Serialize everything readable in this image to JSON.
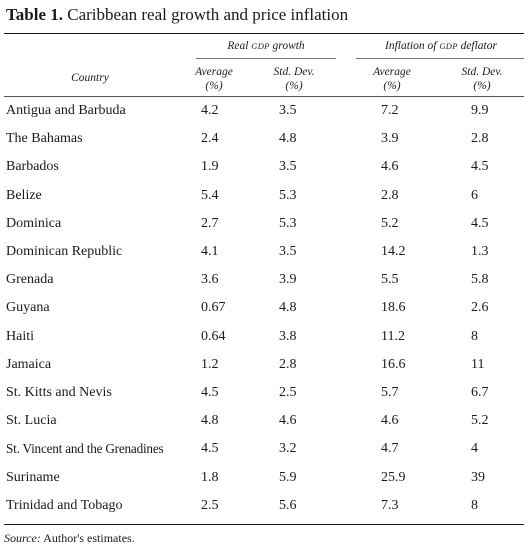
{
  "table": {
    "title_bold": "Table 1.",
    "title_rest": " Caribbean real growth and price inflation",
    "group_headers": [
      {
        "pre": "Real ",
        "sc": "GDP",
        "post": " growth"
      },
      {
        "pre": "Inflation of ",
        "sc": "GDP",
        "post": " deflator"
      }
    ],
    "columns": {
      "country": "Country",
      "avg1": [
        "Average",
        "(%)"
      ],
      "sd1": [
        "Std. Dev.",
        "(%)"
      ],
      "avg2": [
        "Average",
        "(%)"
      ],
      "sd2": [
        "Std. Dev.",
        "(%)"
      ]
    },
    "rows": [
      {
        "country": "Antigua and Barbuda",
        "g_avg": "4.2",
        "g_sd": "3.5",
        "i_avg": "7.2",
        "i_sd": "9.9"
      },
      {
        "country": "The Bahamas",
        "g_avg": "2.4",
        "g_sd": "4.8",
        "i_avg": "3.9",
        "i_sd": "2.8"
      },
      {
        "country": "Barbados",
        "g_avg": "1.9",
        "g_sd": "3.5",
        "i_avg": "4.6",
        "i_sd": "4.5"
      },
      {
        "country": "Belize",
        "g_avg": "5.4",
        "g_sd": "5.3",
        "i_avg": "2.8",
        "i_sd": "6"
      },
      {
        "country": "Dominica",
        "g_avg": "2.7",
        "g_sd": "5.3",
        "i_avg": "5.2",
        "i_sd": "4.5"
      },
      {
        "country": "Dominican Republic",
        "g_avg": "4.1",
        "g_sd": "3.5",
        "i_avg": "14.2",
        "i_sd": "1.3"
      },
      {
        "country": "Grenada",
        "g_avg": "3.6",
        "g_sd": "3.9",
        "i_avg": "5.5",
        "i_sd": "5.8"
      },
      {
        "country": "Guyana",
        "g_avg": "0.67",
        "g_sd": "4.8",
        "i_avg": "18.6",
        "i_sd": "2.6"
      },
      {
        "country": "Haiti",
        "g_avg": "0.64",
        "g_sd": "3.8",
        "i_avg": "11.2",
        "i_sd": "8"
      },
      {
        "country": "Jamaica",
        "g_avg": "1.2",
        "g_sd": "2.8",
        "i_avg": "16.6",
        "i_sd": "11"
      },
      {
        "country": "St. Kitts and Nevis",
        "g_avg": "4.5",
        "g_sd": "2.5",
        "i_avg": "5.7",
        "i_sd": "6.7"
      },
      {
        "country": "St. Lucia",
        "g_avg": "4.8",
        "g_sd": "4.6",
        "i_avg": "4.6",
        "i_sd": "5.2"
      },
      {
        "country": "St. Vincent and the Grenadines",
        "g_avg": "4.5",
        "g_sd": "3.2",
        "i_avg": "4.7",
        "i_sd": "4"
      },
      {
        "country": "Suriname",
        "g_avg": "1.8",
        "g_sd": "5.9",
        "i_avg": "25.9",
        "i_sd": "39"
      },
      {
        "country": "Trinidad and Tobago",
        "g_avg": "2.5",
        "g_sd": "5.6",
        "i_avg": "7.3",
        "i_sd": "8"
      }
    ],
    "source_label": "Source:",
    "source_text": " Author's estimates."
  }
}
